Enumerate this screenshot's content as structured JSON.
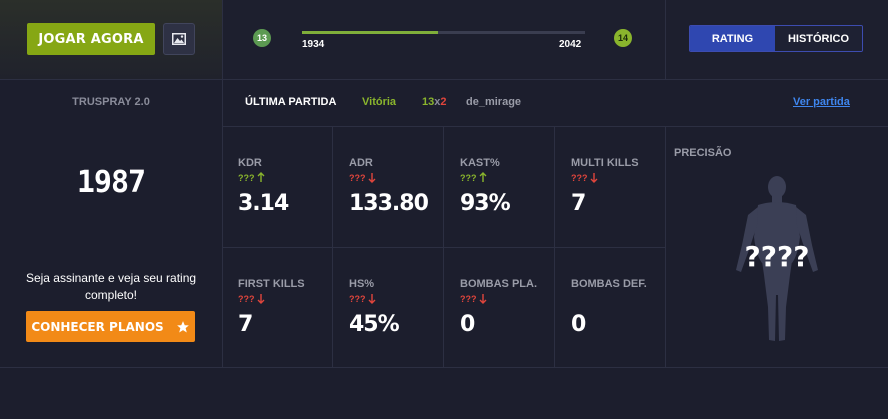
{
  "header": {
    "play_button": "JOGAR AGORA",
    "image_icon": "image-icon",
    "progress": {
      "level_current": "13",
      "level_next": "14",
      "min_value": "1934",
      "max_value": "2042",
      "fill_fraction": 0.48,
      "fill_color": "#7fae3a"
    },
    "tabs": {
      "rating": "RATING",
      "history": "HISTÓRICO"
    }
  },
  "side": {
    "title": "TRUSPRAY 2.0",
    "score": "1987",
    "message": "Seja assinante e veja seu rating completo!",
    "plans_button": "CONHECER PLANOS",
    "plans_icon": "star-icon"
  },
  "match": {
    "title": "ÚLTIMA PARTIDA",
    "result": "Vitória",
    "score_win": "13",
    "score_sep": "x",
    "score_loss": "2",
    "map": "de_mirage",
    "link": "Ver partida"
  },
  "stats": [
    {
      "label": "KDR",
      "sub": "???",
      "trend": "up",
      "value": "3.14"
    },
    {
      "label": "ADR",
      "sub": "???",
      "trend": "down",
      "value": "133.80"
    },
    {
      "label": "KAST%",
      "sub": "???",
      "trend": "up",
      "value": "93%"
    },
    {
      "label": "MULTI KILLS",
      "sub": "???",
      "trend": "down",
      "value": "7"
    },
    {
      "label": "FIRST KILLS",
      "sub": "???",
      "trend": "down",
      "value": "7"
    },
    {
      "label": "HS%",
      "sub": "???",
      "trend": "down",
      "value": "45%"
    },
    {
      "label": "BOMBAS PLA.",
      "sub": "???",
      "trend": "down",
      "value": "0"
    },
    {
      "label": "BOMBAS DEF.",
      "sub": "",
      "trend": "",
      "value": "0"
    }
  ],
  "precision": {
    "title": "PRECISÃO",
    "value": "????"
  },
  "colors": {
    "accent_green": "#86a714",
    "accent_orange": "#f28a17",
    "accent_blue": "#2f47b0",
    "up": "#8ab52d",
    "down": "#e0453c"
  }
}
